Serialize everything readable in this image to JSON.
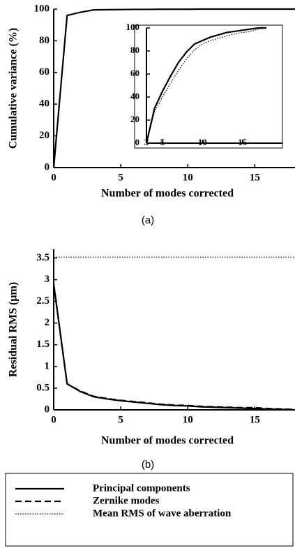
{
  "chart_data": [
    {
      "type": "line",
      "caption": "(a)",
      "x_label": "Number of modes corrected",
      "y_label": "Cumulative variance (%)",
      "x": [
        0,
        1,
        2,
        3,
        4,
        5,
        6,
        7,
        8,
        9,
        10,
        11,
        12,
        13,
        14,
        15,
        16,
        17,
        18
      ],
      "series": [
        {
          "color": "#000000",
          "dash": "solid",
          "values": [
            0,
            96,
            98,
            99.5,
            99.6,
            99.7,
            99.8,
            99.8,
            99.9,
            99.9,
            99.9,
            100,
            100,
            100,
            100,
            100,
            100,
            100,
            100
          ]
        }
      ],
      "xlim": [
        0,
        18
      ],
      "ylim": [
        0,
        100
      ],
      "xticks": [
        0,
        5,
        10,
        15
      ],
      "yticks": [
        0,
        20,
        40,
        60,
        80,
        100
      ]
    },
    {
      "type": "line",
      "x": [
        3,
        4,
        5,
        6,
        7,
        8,
        9,
        10,
        11,
        12,
        13,
        14,
        15,
        16,
        17,
        18
      ],
      "series": [
        {
          "color": "#000000",
          "dash": "solid",
          "values": [
            0,
            30,
            45,
            58,
            70,
            79,
            86,
            89,
            92,
            94,
            96,
            97,
            98,
            99,
            100,
            100
          ]
        },
        {
          "color": "#000000",
          "dash": "dotted",
          "values": [
            0,
            27,
            40,
            52,
            63,
            73,
            81,
            86,
            89,
            91,
            93,
            95,
            96,
            97,
            99,
            100
          ]
        }
      ],
      "xlim": [
        3,
        20
      ],
      "ylim": [
        0,
        100
      ],
      "xticks": [
        3,
        5,
        10,
        15
      ],
      "yticks": [
        0,
        20,
        40,
        60,
        80,
        100
      ]
    },
    {
      "type": "line",
      "caption": "(b)",
      "x_label": "Number of modes corrected",
      "y_label": "Residual RMS (µm)",
      "x": [
        0,
        1,
        2,
        3,
        4,
        5,
        6,
        7,
        8,
        9,
        10,
        11,
        12,
        13,
        14,
        15,
        16,
        17,
        18
      ],
      "series": [
        {
          "name": "Principal components",
          "color": "#000000",
          "dash": "solid",
          "values": [
            2.9,
            0.6,
            0.42,
            0.3,
            0.25,
            0.21,
            0.18,
            0.15,
            0.12,
            0.1,
            0.09,
            0.07,
            0.06,
            0.05,
            0.04,
            0.03,
            0.02,
            0.01,
            0
          ]
        },
        {
          "name": "Zernike modes",
          "color": "#000000",
          "dash": "dashed",
          "values": [
            2.9,
            0.6,
            0.43,
            0.31,
            0.26,
            0.22,
            0.19,
            0.16,
            0.13,
            0.11,
            0.1,
            0.08,
            0.07,
            0.06,
            0.05,
            0.05,
            0.03,
            0.02,
            0.01
          ]
        },
        {
          "name": "Mean RMS of wave aberration",
          "color": "#000000",
          "dash": "dotted",
          "values": [
            3.52,
            3.52,
            3.52,
            3.52,
            3.52,
            3.52,
            3.52,
            3.52,
            3.52,
            3.52,
            3.52,
            3.52,
            3.52,
            3.52,
            3.52,
            3.52,
            3.52,
            3.52,
            3.52
          ]
        }
      ],
      "xlim": [
        0,
        18
      ],
      "ylim": [
        0,
        3.7
      ],
      "xticks": [
        0,
        5,
        10,
        15
      ],
      "yticks": [
        0,
        0.5,
        1,
        1.5,
        2,
        2.5,
        3,
        3.5
      ],
      "legend": "bottom"
    }
  ]
}
